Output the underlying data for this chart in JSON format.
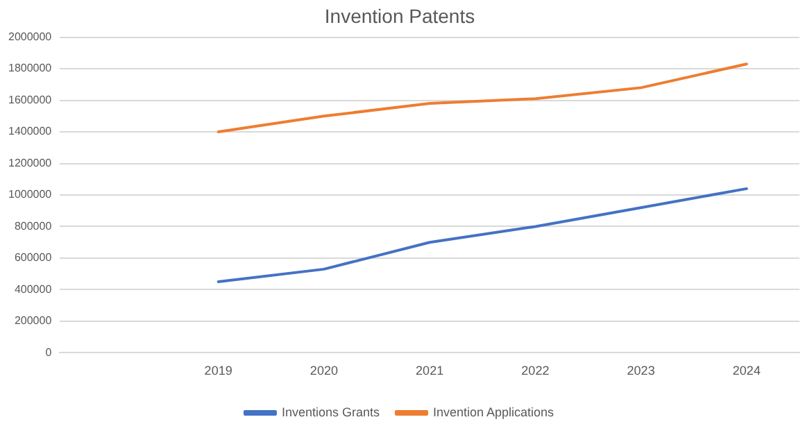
{
  "chart_data": {
    "type": "line",
    "title": "Invention Patents",
    "categories": [
      null,
      "2019",
      "2020",
      "2021",
      "2022",
      "2023",
      "2024"
    ],
    "series": [
      {
        "name": "Inventions Grants",
        "color": "#4472c4",
        "values": [
          null,
          450000,
          530000,
          700000,
          800000,
          920000,
          1040000
        ]
      },
      {
        "name": "Invention Applications",
        "color": "#ed7d31",
        "values": [
          null,
          1400000,
          1500000,
          1580000,
          1610000,
          1680000,
          1830000
        ]
      }
    ],
    "ylim": [
      0,
      2000000
    ],
    "yticks": [
      0,
      200000,
      400000,
      600000,
      800000,
      1000000,
      1200000,
      1400000,
      1600000,
      1800000,
      2000000
    ],
    "grid": "y",
    "legend": "bottom",
    "marker": "none",
    "line_style": "solid"
  }
}
